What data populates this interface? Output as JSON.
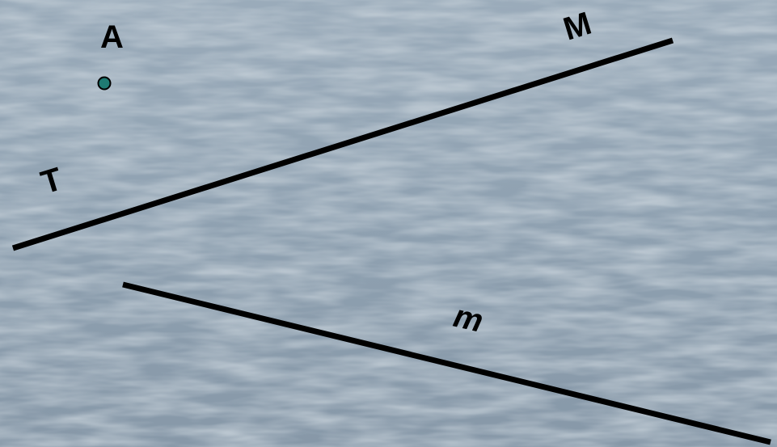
{
  "diagram": {
    "point_label": "A",
    "line_upper_label": "M",
    "line_upper_left_label": "T",
    "line_lower_label": "m"
  },
  "colors": {
    "background_base": "#8b9dad",
    "background_light": "#b3c2cf",
    "background_dark": "#6e8191",
    "line": "#000000",
    "point_fill": "#1f7a72",
    "point_stroke": "#000000"
  }
}
